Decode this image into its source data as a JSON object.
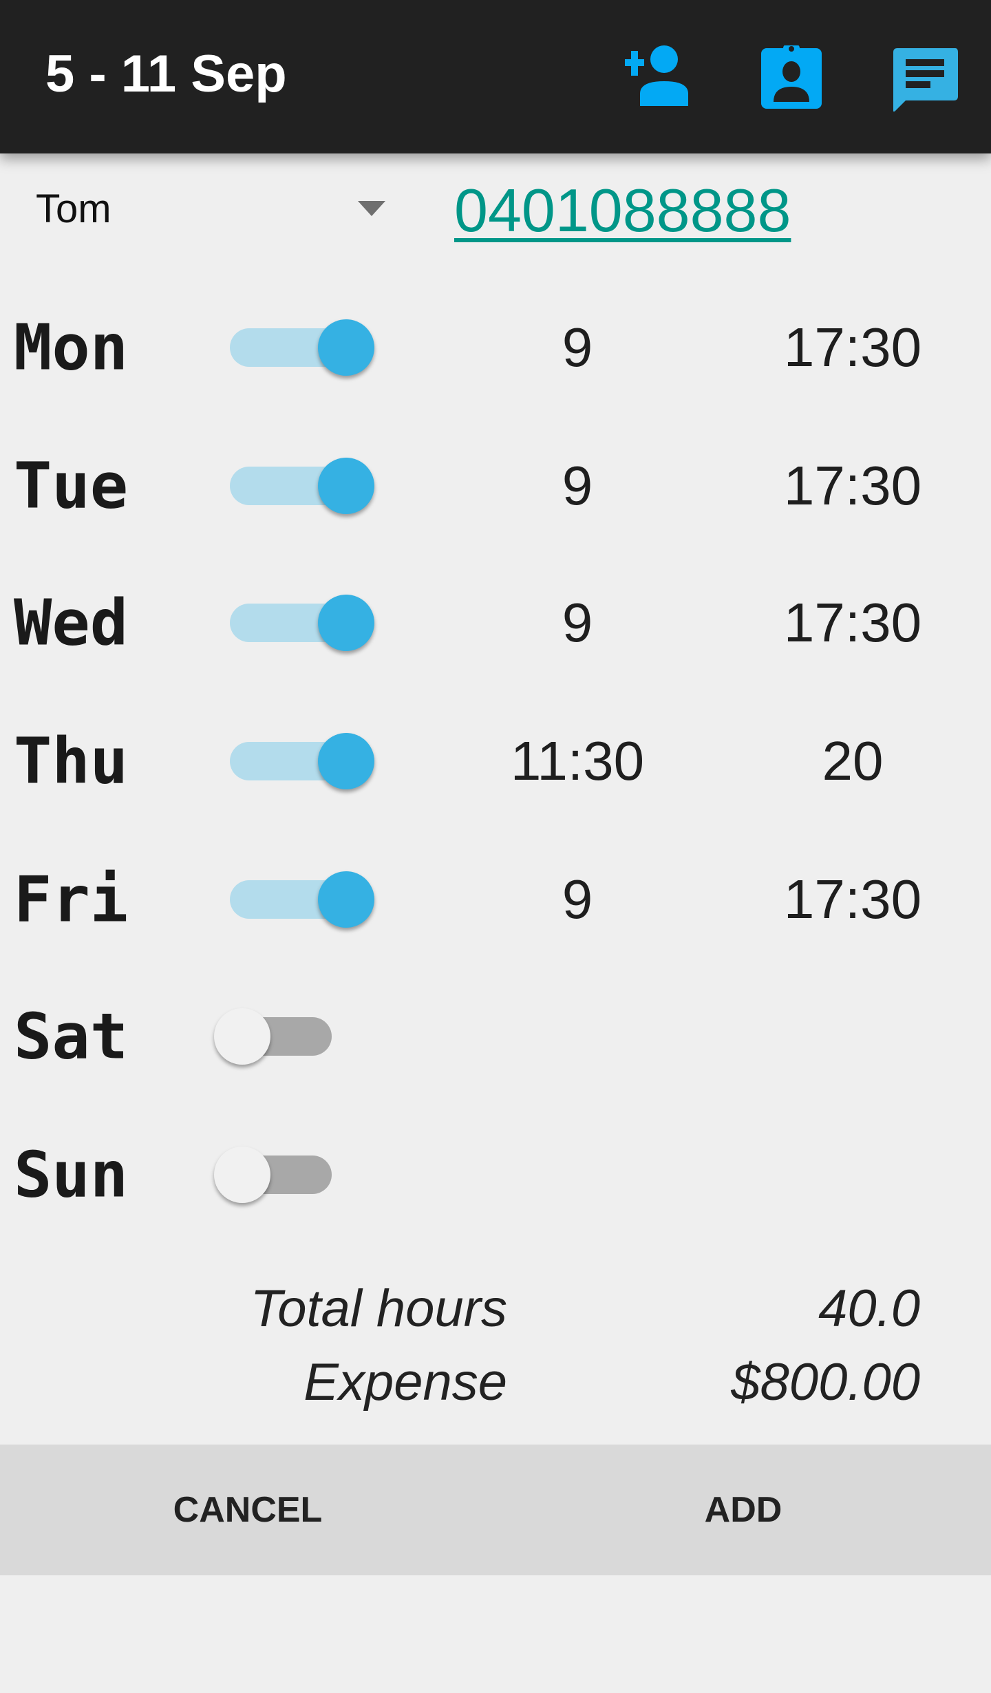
{
  "header": {
    "title": "5 - 11 Sep",
    "icons": [
      "person-add-icon",
      "badge-icon",
      "message-icon"
    ],
    "icon_color": "#03a9f4"
  },
  "employee": {
    "selected": "Tom",
    "phone": "0401088888"
  },
  "days": [
    {
      "label": "Mon",
      "enabled": true,
      "start": "9",
      "end": "17:30"
    },
    {
      "label": "Tue",
      "enabled": true,
      "start": "9",
      "end": "17:30"
    },
    {
      "label": "Wed",
      "enabled": true,
      "start": "9",
      "end": "17:30"
    },
    {
      "label": "Thu",
      "enabled": true,
      "start": "11:30",
      "end": "20"
    },
    {
      "label": "Fri",
      "enabled": true,
      "start": "9",
      "end": "17:30"
    },
    {
      "label": "Sat",
      "enabled": false,
      "start": "",
      "end": ""
    },
    {
      "label": "Sun",
      "enabled": false,
      "start": "",
      "end": ""
    }
  ],
  "summary": {
    "total_label": "Total hours",
    "total_value": "40.0",
    "expense_label": "Expense",
    "expense_value": "$800.00"
  },
  "buttons": {
    "cancel": "CANCEL",
    "add": "ADD"
  },
  "colors": {
    "accent": "#35b1e3",
    "link": "#009688",
    "appbar": "#212121"
  }
}
